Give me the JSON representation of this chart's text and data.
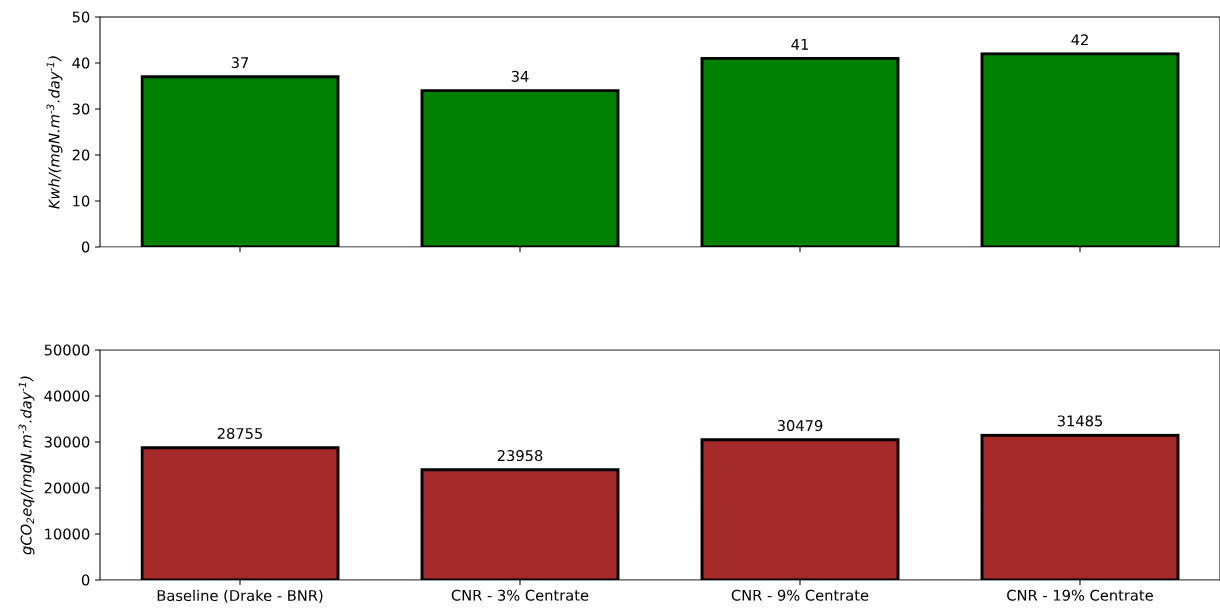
{
  "chart_data": [
    {
      "type": "bar",
      "ylabel": "Kwh/(mgN.m$^{-3}$.day$^{-1}$)",
      "categories": [
        null,
        null,
        null,
        null
      ],
      "values": [
        37,
        34,
        41,
        42
      ],
      "data_labels": true,
      "color": "#008000",
      "ylim": [
        0,
        50
      ],
      "yticks": [
        0,
        10,
        20,
        30,
        40,
        50
      ],
      "tick_labels": "y"
    },
    {
      "type": "bar",
      "ylabel": "gCO$_{2}$eq/(mgN.m$^{-3}$.day$^{-1}$)",
      "categories": [
        "Baseline (Drake - BNR)",
        "CNR - 3% Centrate",
        "CNR - 9% Centrate",
        "CNR - 19% Centrate"
      ],
      "values": [
        28755,
        23958,
        30479,
        31485
      ],
      "data_labels": true,
      "color": "#a52a2a",
      "ylim": [
        0,
        50000
      ],
      "yticks": [
        0,
        10000,
        20000,
        30000,
        40000,
        50000
      ]
    }
  ]
}
